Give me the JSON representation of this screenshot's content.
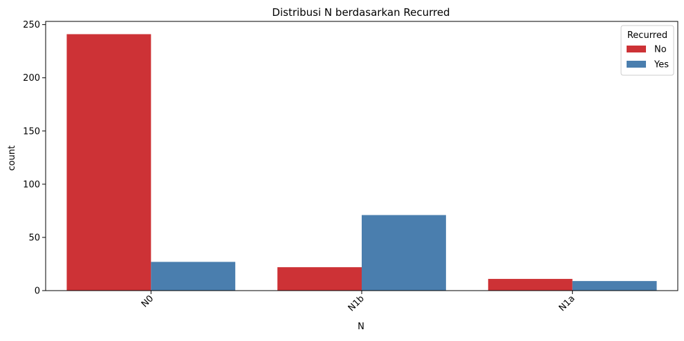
{
  "chart_data": {
    "type": "bar",
    "title": "Distribusi N berdasarkan Recurred",
    "xlabel": "N",
    "ylabel": "count",
    "categories": [
      "N0",
      "N1b",
      "N1a"
    ],
    "series": [
      {
        "name": "No",
        "color": "#cd3236",
        "values": [
          241,
          22,
          11
        ]
      },
      {
        "name": "Yes",
        "color": "#4a7eae",
        "values": [
          27,
          71,
          9
        ]
      }
    ],
    "ylim": [
      0,
      253
    ],
    "yticks": [
      0,
      50,
      100,
      150,
      200,
      250
    ],
    "x_tick_rotation": 45,
    "grid": false,
    "legend": {
      "title": "Recurred",
      "position": "top-right"
    }
  }
}
